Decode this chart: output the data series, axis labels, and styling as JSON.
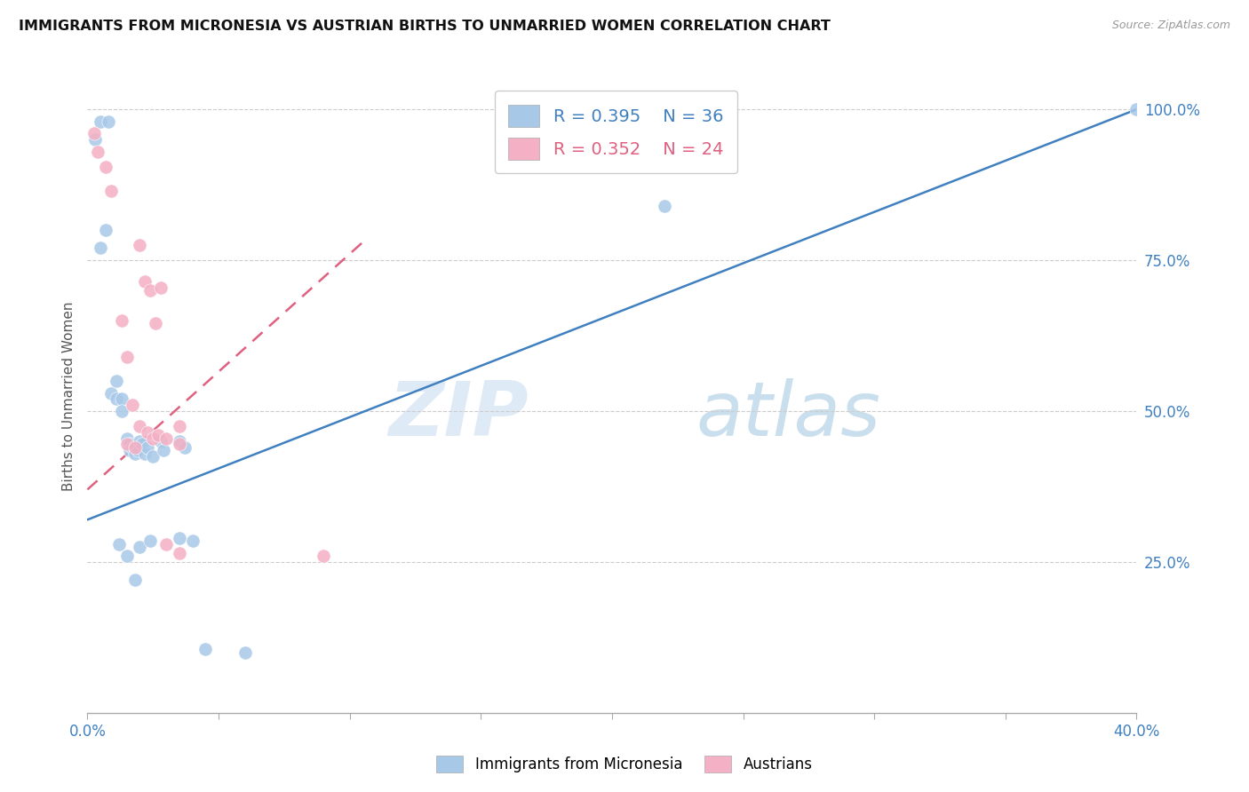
{
  "title": "IMMIGRANTS FROM MICRONESIA VS AUSTRIAN BIRTHS TO UNMARRIED WOMEN CORRELATION CHART",
  "source": "Source: ZipAtlas.com",
  "ylabel": "Births to Unmarried Women",
  "watermark": "ZIPatlas",
  "legend_blue_r": "0.395",
  "legend_blue_n": "36",
  "legend_pink_r": "0.352",
  "legend_pink_n": "24",
  "blue_color": "#a8c8e8",
  "pink_color": "#f4b0c4",
  "blue_line_color": "#4080c0",
  "pink_line_color": "#e06080",
  "blue_scatter": [
    [
      0.3,
      95.0
    ],
    [
      0.5,
      98.0
    ],
    [
      0.8,
      98.0
    ],
    [
      0.7,
      80.0
    ],
    [
      0.5,
      77.0
    ],
    [
      0.9,
      53.0
    ],
    [
      1.1,
      55.0
    ],
    [
      1.1,
      52.0
    ],
    [
      1.3,
      52.0
    ],
    [
      1.3,
      50.0
    ],
    [
      1.5,
      45.5
    ],
    [
      1.6,
      44.5
    ],
    [
      1.6,
      43.5
    ],
    [
      1.7,
      44.0
    ],
    [
      1.8,
      43.0
    ],
    [
      1.9,
      43.5
    ],
    [
      2.0,
      45.0
    ],
    [
      2.1,
      44.5
    ],
    [
      2.2,
      43.0
    ],
    [
      2.3,
      44.0
    ],
    [
      2.5,
      42.5
    ],
    [
      2.8,
      45.0
    ],
    [
      2.9,
      43.5
    ],
    [
      3.5,
      45.0
    ],
    [
      3.7,
      44.0
    ],
    [
      1.2,
      28.0
    ],
    [
      1.5,
      26.0
    ],
    [
      2.0,
      27.5
    ],
    [
      2.4,
      28.5
    ],
    [
      3.5,
      29.0
    ],
    [
      4.0,
      28.5
    ],
    [
      1.8,
      22.0
    ],
    [
      4.5,
      10.5
    ],
    [
      6.0,
      10.0
    ],
    [
      22.0,
      84.0
    ],
    [
      40.0,
      100.0
    ]
  ],
  "pink_scatter": [
    [
      0.25,
      96.0
    ],
    [
      0.4,
      93.0
    ],
    [
      0.7,
      90.5
    ],
    [
      0.9,
      86.5
    ],
    [
      1.3,
      65.0
    ],
    [
      1.5,
      59.0
    ],
    [
      2.0,
      77.5
    ],
    [
      2.2,
      71.5
    ],
    [
      2.4,
      70.0
    ],
    [
      2.6,
      64.5
    ],
    [
      2.8,
      70.5
    ],
    [
      1.7,
      51.0
    ],
    [
      2.0,
      47.5
    ],
    [
      2.3,
      46.5
    ],
    [
      2.5,
      45.5
    ],
    [
      2.7,
      46.0
    ],
    [
      3.0,
      45.5
    ],
    [
      3.5,
      47.5
    ],
    [
      3.5,
      44.5
    ],
    [
      1.5,
      44.5
    ],
    [
      1.8,
      44.0
    ],
    [
      3.0,
      28.0
    ],
    [
      3.5,
      26.5
    ],
    [
      9.0,
      26.0
    ]
  ],
  "x_min": 0.0,
  "x_max": 40.0,
  "y_min": 0.0,
  "y_max": 105.0,
  "blue_line_x": [
    0.0,
    40.0
  ],
  "blue_line_y": [
    32.0,
    100.0
  ],
  "pink_line_x": [
    0.0,
    10.5
  ],
  "pink_line_y": [
    37.0,
    78.0
  ]
}
